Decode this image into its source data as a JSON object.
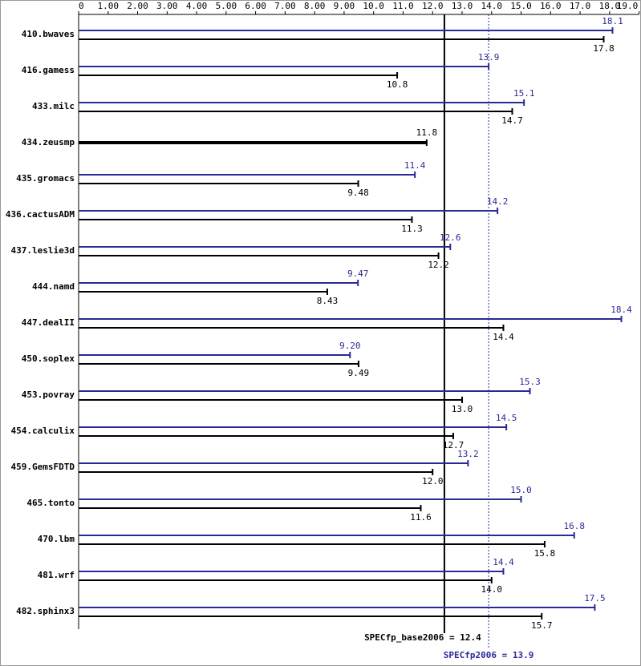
{
  "chart_data": {
    "type": "bar",
    "orientation": "horizontal",
    "categories": [
      "410.bwaves",
      "416.gamess",
      "433.milc",
      "434.zeusmp",
      "435.gromacs",
      "436.cactusADM",
      "437.leslie3d",
      "444.namd",
      "447.dealII",
      "450.soplex",
      "453.povray",
      "454.calculix",
      "459.GemsFDTD",
      "465.tonto",
      "470.lbm",
      "481.wrf",
      "482.sphinx3"
    ],
    "series": [
      {
        "color": "#2a2a96",
        "values": [
          18.1,
          13.9,
          15.1,
          null,
          11.4,
          14.2,
          12.6,
          9.47,
          18.4,
          9.2,
          15.3,
          14.5,
          13.2,
          15.0,
          16.8,
          14.4,
          17.5
        ],
        "value_labels": [
          "18.1",
          "13.9",
          "15.1",
          null,
          "11.4",
          "14.2",
          "12.6",
          "9.47",
          "18.4",
          "9.20",
          "15.3",
          "14.5",
          "13.2",
          "15.0",
          "16.8",
          "14.4",
          "17.5"
        ]
      },
      {
        "color": "#000000",
        "values": [
          17.8,
          10.8,
          14.7,
          11.8,
          9.48,
          11.3,
          12.2,
          8.43,
          14.4,
          9.49,
          13.0,
          12.7,
          12.0,
          11.6,
          15.8,
          14.0,
          15.7
        ],
        "value_labels": [
          "17.8",
          "10.8",
          "14.7",
          "11.8",
          "9.48",
          "11.3",
          "12.2",
          "8.43",
          "14.4",
          "9.49",
          "13.0",
          "12.7",
          "12.0",
          "11.6",
          "15.8",
          "14.0",
          "15.7"
        ]
      }
    ],
    "xlim": [
      0,
      19
    ],
    "xticks": [
      0,
      {
        "value": 1,
        "label": "1.00"
      },
      {
        "value": 2,
        "label": "2.00"
      },
      {
        "value": 3,
        "label": "3.00"
      },
      {
        "value": 4,
        "label": "4.00"
      },
      {
        "value": 5,
        "label": "5.00"
      },
      {
        "value": 6,
        "label": "6.00"
      },
      {
        "value": 7,
        "label": "7.00"
      },
      {
        "value": 8,
        "label": "8.00"
      },
      {
        "value": 9,
        "label": "9.00"
      },
      {
        "value": 10,
        "label": "10.0"
      },
      {
        "value": 11,
        "label": "11.0"
      },
      {
        "value": 12,
        "label": "12.0"
      },
      {
        "value": 13,
        "label": "13.0"
      },
      {
        "value": 14,
        "label": "14.0"
      },
      {
        "value": 15,
        "label": "15.0"
      },
      {
        "value": 16,
        "label": "16.0"
      },
      {
        "value": 17,
        "label": "17.0"
      },
      {
        "value": 18,
        "label": "18.0"
      },
      {
        "value": 19,
        "label": "19.0"
      }
    ],
    "reference_lines": [
      {
        "label": "SPECfp_base2006 = 12.4",
        "value": 12.4,
        "color": "#000000",
        "style": "solid"
      },
      {
        "label": "SPECfp2006 = 13.9",
        "value": 13.9,
        "color": "#2a2a96",
        "style": "dotted"
      }
    ]
  }
}
